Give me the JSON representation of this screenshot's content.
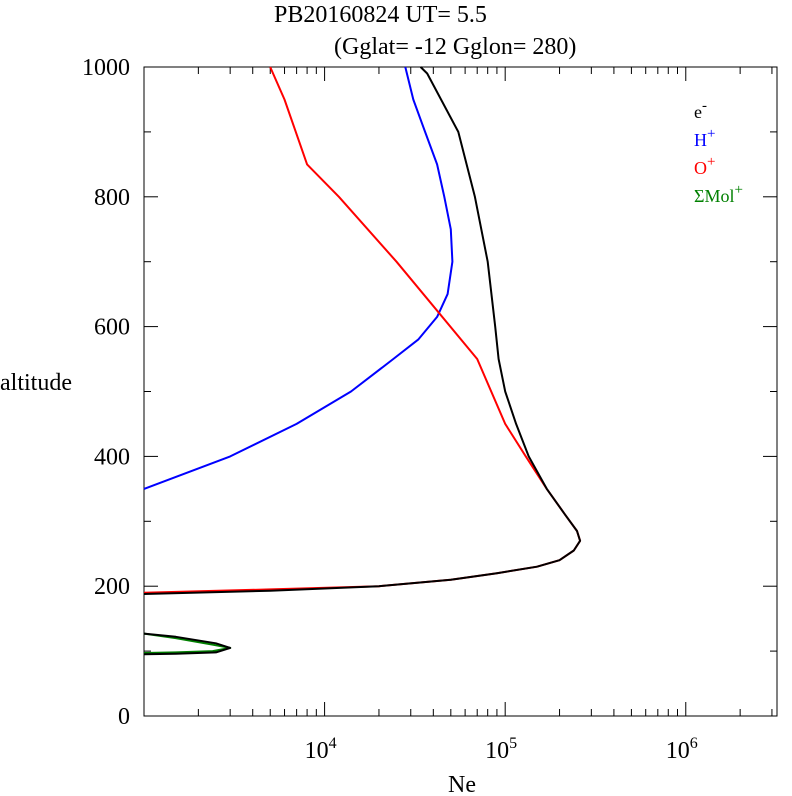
{
  "title": {
    "line1": "PB20160824   UT=  5.5",
    "line2": "(Gglat= -12   Gglon=  280)"
  },
  "chart_data": {
    "type": "line",
    "xlabel": "Ne",
    "ylabel": "altitude",
    "x_scale": "log",
    "xlim": [
      1000,
      3200000
    ],
    "ylim": [
      0,
      1000
    ],
    "x_ticks": [
      {
        "value": 10000,
        "base": "10",
        "exp": "4"
      },
      {
        "value": 100000,
        "base": "10",
        "exp": "5"
      },
      {
        "value": 1000000,
        "base": "10",
        "exp": "6"
      }
    ],
    "y_ticks": [
      0,
      200,
      400,
      600,
      800,
      1000
    ],
    "legend_position": "top-right",
    "legend": [
      {
        "base": "e",
        "sup": "-",
        "color": "#000000"
      },
      {
        "base": "H",
        "sup": "+",
        "color": "#0000ff"
      },
      {
        "base": "O",
        "sup": "+",
        "color": "#ff0000"
      },
      {
        "base": "ΣMol",
        "sup": "+",
        "color": "#008000"
      }
    ],
    "series": [
      {
        "key": "mol",
        "color": "#008000",
        "points": [
          [
            1000,
            97
          ],
          [
            1500,
            98
          ],
          [
            2400,
            100
          ],
          [
            3000,
            105
          ],
          [
            2400,
            110
          ],
          [
            1500,
            120
          ],
          [
            1000,
            127
          ]
        ]
      },
      {
        "key": "hplus",
        "color": "#0000ff",
        "points": [
          [
            1000,
            350
          ],
          [
            3000,
            400
          ],
          [
            7000,
            450
          ],
          [
            14000,
            500
          ],
          [
            24000,
            550
          ],
          [
            33000,
            580
          ],
          [
            42000,
            615
          ],
          [
            48000,
            650
          ],
          [
            51000,
            700
          ],
          [
            50000,
            750
          ],
          [
            46000,
            800
          ],
          [
            42000,
            850
          ],
          [
            36000,
            900
          ],
          [
            31000,
            950
          ],
          [
            28000,
            1000
          ]
        ]
      },
      {
        "key": "oplus",
        "color": "#ff0000",
        "points": [
          [
            1000,
            190
          ],
          [
            5000,
            195
          ],
          [
            20000,
            200
          ],
          [
            50000,
            210
          ],
          [
            90000,
            220
          ],
          [
            150000,
            230
          ],
          [
            200000,
            240
          ],
          [
            240000,
            255
          ],
          [
            260000,
            270
          ],
          [
            250000,
            285
          ],
          [
            215000,
            310
          ],
          [
            170000,
            350
          ],
          [
            130000,
            400
          ],
          [
            100000,
            450
          ],
          [
            70000,
            550
          ],
          [
            25000,
            700
          ],
          [
            12000,
            800
          ],
          [
            8000,
            850
          ],
          [
            6000,
            950
          ],
          [
            5000,
            1000
          ]
        ]
      },
      {
        "key": "e",
        "color": "#000000",
        "points": [
          [
            1000,
            188
          ],
          [
            5000,
            193
          ],
          [
            20000,
            200
          ],
          [
            50000,
            210
          ],
          [
            90000,
            220
          ],
          [
            150000,
            230
          ],
          [
            200000,
            240
          ],
          [
            240000,
            255
          ],
          [
            260000,
            270
          ],
          [
            250000,
            285
          ],
          [
            215000,
            310
          ],
          [
            170000,
            350
          ],
          [
            135000,
            400
          ],
          [
            115000,
            450
          ],
          [
            100000,
            500
          ],
          [
            92000,
            550
          ],
          [
            88000,
            600
          ],
          [
            80000,
            700
          ],
          [
            68000,
            800
          ],
          [
            55000,
            900
          ],
          [
            37000,
            990
          ],
          [
            34000,
            1000
          ]
        ]
      },
      {
        "key": "e-low",
        "color": "#000000",
        "points": [
          [
            1000,
            95
          ],
          [
            1500,
            96
          ],
          [
            2500,
            98
          ],
          [
            3000,
            105
          ],
          [
            2500,
            112
          ],
          [
            1500,
            122
          ],
          [
            1000,
            127
          ]
        ]
      }
    ]
  }
}
